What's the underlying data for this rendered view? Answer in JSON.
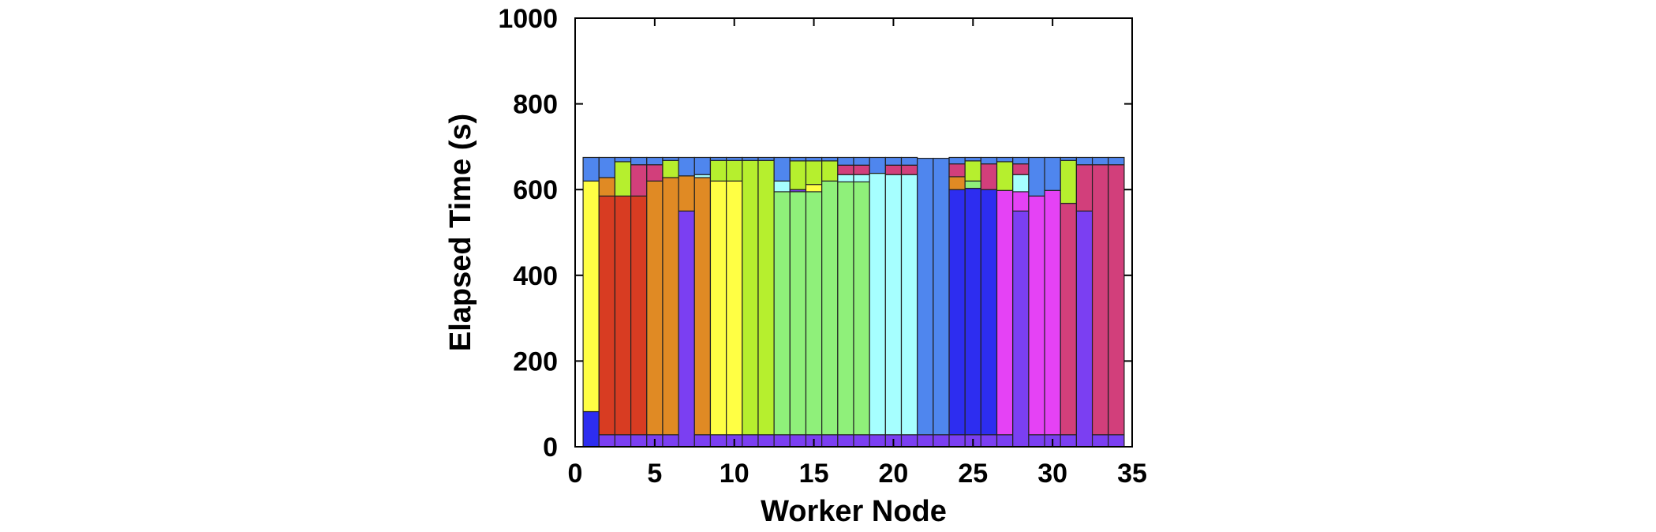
{
  "chart_data": {
    "type": "bar",
    "stacked": true,
    "title": "",
    "xlabel": "Worker Node",
    "ylabel": "Elapsed Time (s)",
    "xlim": [
      0,
      35
    ],
    "ylim": [
      0,
      1000
    ],
    "xticks": [
      0,
      5,
      10,
      15,
      20,
      25,
      30,
      35
    ],
    "yticks": [
      0,
      200,
      400,
      600,
      800,
      1000
    ],
    "grid": false,
    "legend": "none",
    "palette": {
      "violet": "#7b3ff2",
      "blue": "#2d2df0",
      "yellow": "#ffff44",
      "red": "#d83c22",
      "orange": "#e08a24",
      "green_yellow": "#b6ef2e",
      "light_green": "#8ff07a",
      "cyan": "#a6ffff",
      "cornflower": "#4f86ee",
      "magenta": "#e542f5",
      "pink": "#d23f7b",
      "border": "#222222"
    },
    "bars": [
      {
        "x": 1,
        "segments": [
          {
            "value": 82,
            "color": "blue"
          },
          {
            "value": 538,
            "color": "yellow"
          },
          {
            "value": 55,
            "color": "cornflower"
          }
        ]
      },
      {
        "x": 2,
        "segments": [
          {
            "value": 28,
            "color": "violet"
          },
          {
            "value": 557,
            "color": "red"
          },
          {
            "value": 43,
            "color": "orange"
          },
          {
            "value": 47,
            "color": "cornflower"
          }
        ]
      },
      {
        "x": 3,
        "segments": [
          {
            "value": 28,
            "color": "violet"
          },
          {
            "value": 557,
            "color": "red"
          },
          {
            "value": 80,
            "color": "green_yellow"
          },
          {
            "value": 10,
            "color": "cornflower"
          }
        ]
      },
      {
        "x": 4,
        "segments": [
          {
            "value": 28,
            "color": "violet"
          },
          {
            "value": 557,
            "color": "red"
          },
          {
            "value": 73,
            "color": "pink"
          },
          {
            "value": 17,
            "color": "cornflower"
          }
        ]
      },
      {
        "x": 5,
        "segments": [
          {
            "value": 28,
            "color": "violet"
          },
          {
            "value": 592,
            "color": "orange"
          },
          {
            "value": 38,
            "color": "pink"
          },
          {
            "value": 17,
            "color": "cornflower"
          }
        ]
      },
      {
        "x": 6,
        "segments": [
          {
            "value": 28,
            "color": "violet"
          },
          {
            "value": 600,
            "color": "orange"
          },
          {
            "value": 40,
            "color": "green_yellow"
          },
          {
            "value": 7,
            "color": "cornflower"
          }
        ]
      },
      {
        "x": 7,
        "segments": [
          {
            "value": 550,
            "color": "violet"
          },
          {
            "value": 82,
            "color": "orange"
          },
          {
            "value": 43,
            "color": "cornflower"
          }
        ]
      },
      {
        "x": 8,
        "segments": [
          {
            "value": 28,
            "color": "violet"
          },
          {
            "value": 600,
            "color": "orange"
          },
          {
            "value": 7,
            "color": "cyan"
          },
          {
            "value": 40,
            "color": "cornflower"
          }
        ]
      },
      {
        "x": 9,
        "segments": [
          {
            "value": 28,
            "color": "violet"
          },
          {
            "value": 592,
            "color": "yellow"
          },
          {
            "value": 48,
            "color": "green_yellow"
          },
          {
            "value": 7,
            "color": "cornflower"
          }
        ]
      },
      {
        "x": 10,
        "segments": [
          {
            "value": 28,
            "color": "violet"
          },
          {
            "value": 592,
            "color": "yellow"
          },
          {
            "value": 48,
            "color": "green_yellow"
          },
          {
            "value": 7,
            "color": "cornflower"
          }
        ]
      },
      {
        "x": 11,
        "segments": [
          {
            "value": 28,
            "color": "violet"
          },
          {
            "value": 640,
            "color": "green_yellow"
          },
          {
            "value": 7,
            "color": "cornflower"
          }
        ]
      },
      {
        "x": 12,
        "segments": [
          {
            "value": 28,
            "color": "violet"
          },
          {
            "value": 640,
            "color": "green_yellow"
          },
          {
            "value": 7,
            "color": "cornflower"
          }
        ]
      },
      {
        "x": 13,
        "segments": [
          {
            "value": 28,
            "color": "violet"
          },
          {
            "value": 567,
            "color": "light_green"
          },
          {
            "value": 25,
            "color": "cyan"
          },
          {
            "value": 55,
            "color": "cornflower"
          }
        ]
      },
      {
        "x": 14,
        "segments": [
          {
            "value": 28,
            "color": "violet"
          },
          {
            "value": 567,
            "color": "light_green"
          },
          {
            "value": 5,
            "color": "violet"
          },
          {
            "value": 67,
            "color": "green_yellow"
          },
          {
            "value": 8,
            "color": "cornflower"
          }
        ]
      },
      {
        "x": 15,
        "segments": [
          {
            "value": 28,
            "color": "violet"
          },
          {
            "value": 567,
            "color": "light_green"
          },
          {
            "value": 17,
            "color": "yellow"
          },
          {
            "value": 55,
            "color": "green_yellow"
          },
          {
            "value": 8,
            "color": "cornflower"
          }
        ]
      },
      {
        "x": 16,
        "segments": [
          {
            "value": 28,
            "color": "violet"
          },
          {
            "value": 592,
            "color": "light_green"
          },
          {
            "value": 47,
            "color": "green_yellow"
          },
          {
            "value": 8,
            "color": "cornflower"
          }
        ]
      },
      {
        "x": 17,
        "segments": [
          {
            "value": 28,
            "color": "violet"
          },
          {
            "value": 590,
            "color": "light_green"
          },
          {
            "value": 17,
            "color": "cyan"
          },
          {
            "value": 22,
            "color": "pink"
          },
          {
            "value": 18,
            "color": "cornflower"
          }
        ]
      },
      {
        "x": 18,
        "segments": [
          {
            "value": 28,
            "color": "violet"
          },
          {
            "value": 590,
            "color": "light_green"
          },
          {
            "value": 17,
            "color": "cyan"
          },
          {
            "value": 22,
            "color": "pink"
          },
          {
            "value": 18,
            "color": "cornflower"
          }
        ]
      },
      {
        "x": 19,
        "segments": [
          {
            "value": 28,
            "color": "violet"
          },
          {
            "value": 610,
            "color": "cyan"
          },
          {
            "value": 37,
            "color": "cornflower"
          }
        ]
      },
      {
        "x": 20,
        "segments": [
          {
            "value": 28,
            "color": "violet"
          },
          {
            "value": 607,
            "color": "cyan"
          },
          {
            "value": 22,
            "color": "pink"
          },
          {
            "value": 18,
            "color": "cornflower"
          }
        ]
      },
      {
        "x": 21,
        "segments": [
          {
            "value": 28,
            "color": "violet"
          },
          {
            "value": 607,
            "color": "cyan"
          },
          {
            "value": 22,
            "color": "pink"
          },
          {
            "value": 18,
            "color": "cornflower"
          }
        ]
      },
      {
        "x": 22,
        "segments": [
          {
            "value": 28,
            "color": "violet"
          },
          {
            "value": 645,
            "color": "cornflower"
          }
        ]
      },
      {
        "x": 23,
        "segments": [
          {
            "value": 28,
            "color": "violet"
          },
          {
            "value": 645,
            "color": "cornflower"
          }
        ]
      },
      {
        "x": 24,
        "segments": [
          {
            "value": 28,
            "color": "violet"
          },
          {
            "value": 572,
            "color": "blue"
          },
          {
            "value": 30,
            "color": "orange"
          },
          {
            "value": 30,
            "color": "pink"
          },
          {
            "value": 15,
            "color": "cornflower"
          }
        ]
      },
      {
        "x": 25,
        "segments": [
          {
            "value": 28,
            "color": "violet"
          },
          {
            "value": 575,
            "color": "blue"
          },
          {
            "value": 17,
            "color": "light_green"
          },
          {
            "value": 47,
            "color": "green_yellow"
          },
          {
            "value": 8,
            "color": "cornflower"
          }
        ]
      },
      {
        "x": 26,
        "segments": [
          {
            "value": 28,
            "color": "violet"
          },
          {
            "value": 572,
            "color": "blue"
          },
          {
            "value": 60,
            "color": "pink"
          },
          {
            "value": 15,
            "color": "cornflower"
          }
        ]
      },
      {
        "x": 27,
        "segments": [
          {
            "value": 28,
            "color": "violet"
          },
          {
            "value": 570,
            "color": "magenta"
          },
          {
            "value": 67,
            "color": "green_yellow"
          },
          {
            "value": 10,
            "color": "cornflower"
          }
        ]
      },
      {
        "x": 28,
        "segments": [
          {
            "value": 550,
            "color": "violet"
          },
          {
            "value": 45,
            "color": "magenta"
          },
          {
            "value": 40,
            "color": "cyan"
          },
          {
            "value": 25,
            "color": "pink"
          },
          {
            "value": 15,
            "color": "cornflower"
          }
        ]
      },
      {
        "x": 29,
        "segments": [
          {
            "value": 28,
            "color": "violet"
          },
          {
            "value": 557,
            "color": "magenta"
          },
          {
            "value": 90,
            "color": "cornflower"
          }
        ]
      },
      {
        "x": 30,
        "segments": [
          {
            "value": 28,
            "color": "violet"
          },
          {
            "value": 570,
            "color": "magenta"
          },
          {
            "value": 77,
            "color": "cornflower"
          }
        ]
      },
      {
        "x": 31,
        "segments": [
          {
            "value": 28,
            "color": "violet"
          },
          {
            "value": 540,
            "color": "pink"
          },
          {
            "value": 100,
            "color": "green_yellow"
          },
          {
            "value": 7,
            "color": "cornflower"
          }
        ]
      },
      {
        "x": 32,
        "segments": [
          {
            "value": 550,
            "color": "violet"
          },
          {
            "value": 108,
            "color": "pink"
          },
          {
            "value": 17,
            "color": "cornflower"
          }
        ]
      },
      {
        "x": 33,
        "segments": [
          {
            "value": 28,
            "color": "violet"
          },
          {
            "value": 630,
            "color": "pink"
          },
          {
            "value": 17,
            "color": "cornflower"
          }
        ]
      },
      {
        "x": 34,
        "segments": [
          {
            "value": 28,
            "color": "violet"
          },
          {
            "value": 630,
            "color": "pink"
          },
          {
            "value": 17,
            "color": "cornflower"
          }
        ]
      }
    ]
  }
}
